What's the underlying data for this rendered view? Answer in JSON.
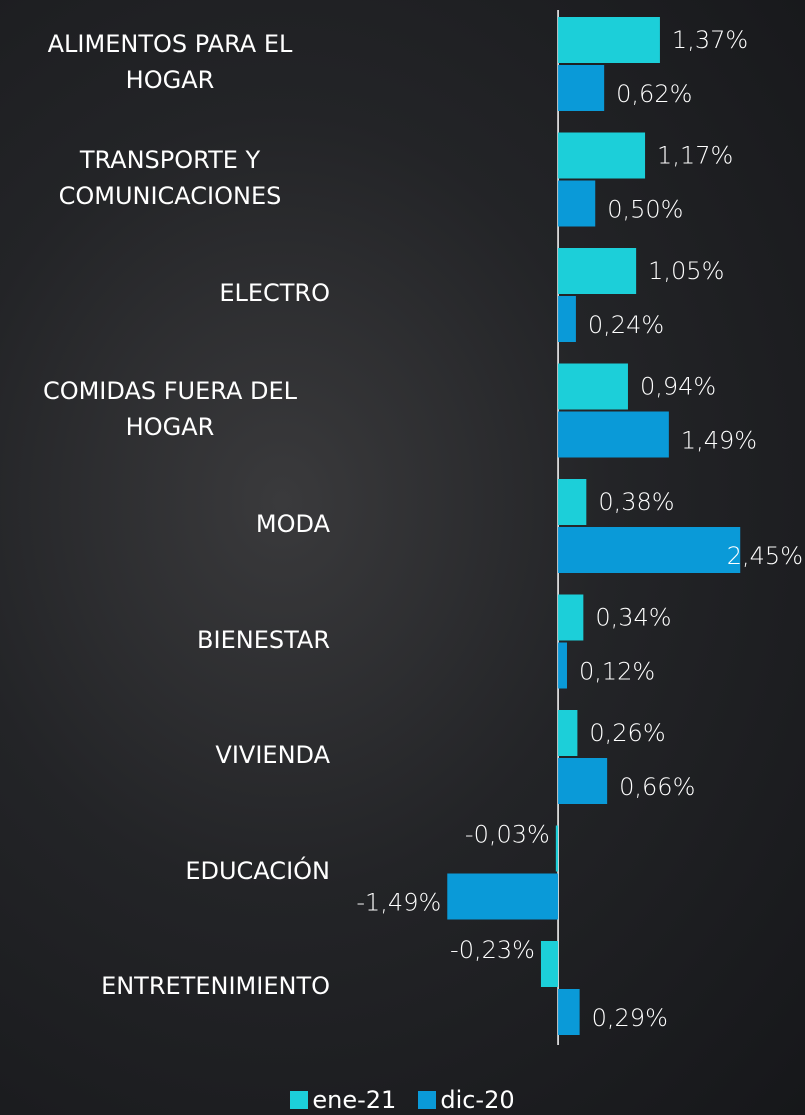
{
  "chart_data": {
    "type": "bar",
    "orientation": "horizontal",
    "categories": [
      "ALIMENTOS PARA EL HOGAR",
      "TRANSPORTE Y COMUNICACIONES",
      "ELECTRO",
      "COMIDAS FUERA DEL HOGAR",
      "MODA",
      "BIENESTAR",
      "VIVIENDA",
      "EDUCACIÓN",
      "ENTRETENIMIENTO"
    ],
    "series": [
      {
        "name": "ene-21",
        "color": "#1ccfd9",
        "values": [
          1.37,
          1.17,
          1.05,
          0.94,
          0.38,
          0.34,
          0.26,
          -0.03,
          -0.23
        ],
        "value_labels": [
          "1,37%",
          "1,17%",
          "1,05%",
          "0,94%",
          "0,38%",
          "0,34%",
          "0,26%",
          "-0,03%",
          "-0,23%"
        ]
      },
      {
        "name": "dic-20",
        "color": "#0a9ad8",
        "values": [
          0.62,
          0.5,
          0.24,
          1.49,
          2.45,
          0.12,
          0.66,
          -1.49,
          0.29
        ],
        "value_labels": [
          "0,62%",
          "0,50%",
          "0,24%",
          "1,49%",
          "2,45%",
          "0,12%",
          "0,66%",
          "-1,49%",
          "0,29%"
        ]
      }
    ],
    "xlim": [
      -3,
      3.2
    ]
  }
}
